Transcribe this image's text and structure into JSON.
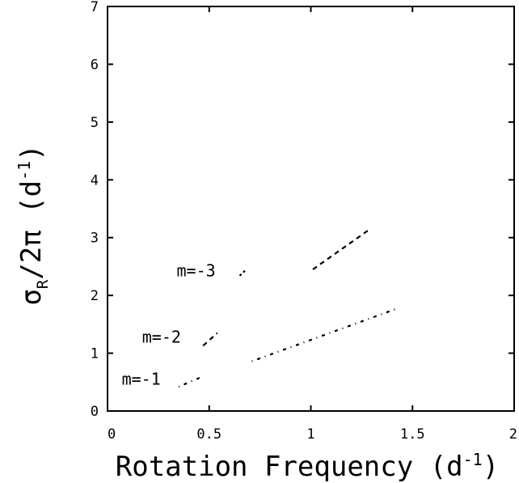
{
  "chart_data": {
    "type": "line",
    "title": "",
    "xlabel": {
      "main": "Rotation Frequency (d",
      "sup": "-1",
      "tail": ")"
    },
    "ylabel": {
      "sigma": "σ",
      "sub": "R",
      "rest": "/2π (d",
      "sup": "-1",
      "tail": ")"
    },
    "xlim": [
      0,
      2
    ],
    "ylim": [
      0,
      7
    ],
    "x_ticks": [
      0,
      0.5,
      1,
      1.5,
      2
    ],
    "x_tick_labels": [
      "0",
      "0.5",
      "1",
      "1.5",
      "2"
    ],
    "y_ticks": [
      0,
      1,
      2,
      3,
      4,
      5,
      6,
      7
    ],
    "y_tick_labels": [
      "0",
      "1",
      "2",
      "3",
      "4",
      "5",
      "6",
      "7"
    ],
    "grid": false,
    "series": [
      {
        "name": "m=-1",
        "dash": "1,6,4,6",
        "segments": [
          {
            "x": [
              0.35,
              0.47
            ],
            "y": [
              0.42,
              0.6
            ]
          },
          {
            "x": [
              0.71,
              1.43
            ],
            "y": [
              0.86,
              1.78
            ]
          }
        ]
      },
      {
        "name": "m=-2",
        "dash": "6,5",
        "segments": [
          {
            "x": [
              0.47,
              0.54
            ],
            "y": [
              1.13,
              1.35
            ]
          },
          {
            "x": [
              1.01,
              1.28
            ],
            "y": [
              2.45,
              3.12
            ]
          }
        ]
      },
      {
        "name": "m=-3",
        "dash": "3,3",
        "segments": [
          {
            "x": [
              0.65,
              0.68
            ],
            "y": [
              2.34,
              2.44
            ]
          }
        ]
      }
    ],
    "annotations": [
      {
        "text": "m=-1",
        "x": 0.07,
        "y": 0.55
      },
      {
        "text": "m=-2",
        "x": 0.17,
        "y": 1.28
      },
      {
        "text": "m=-3",
        "x": 0.34,
        "y": 2.43
      }
    ]
  }
}
